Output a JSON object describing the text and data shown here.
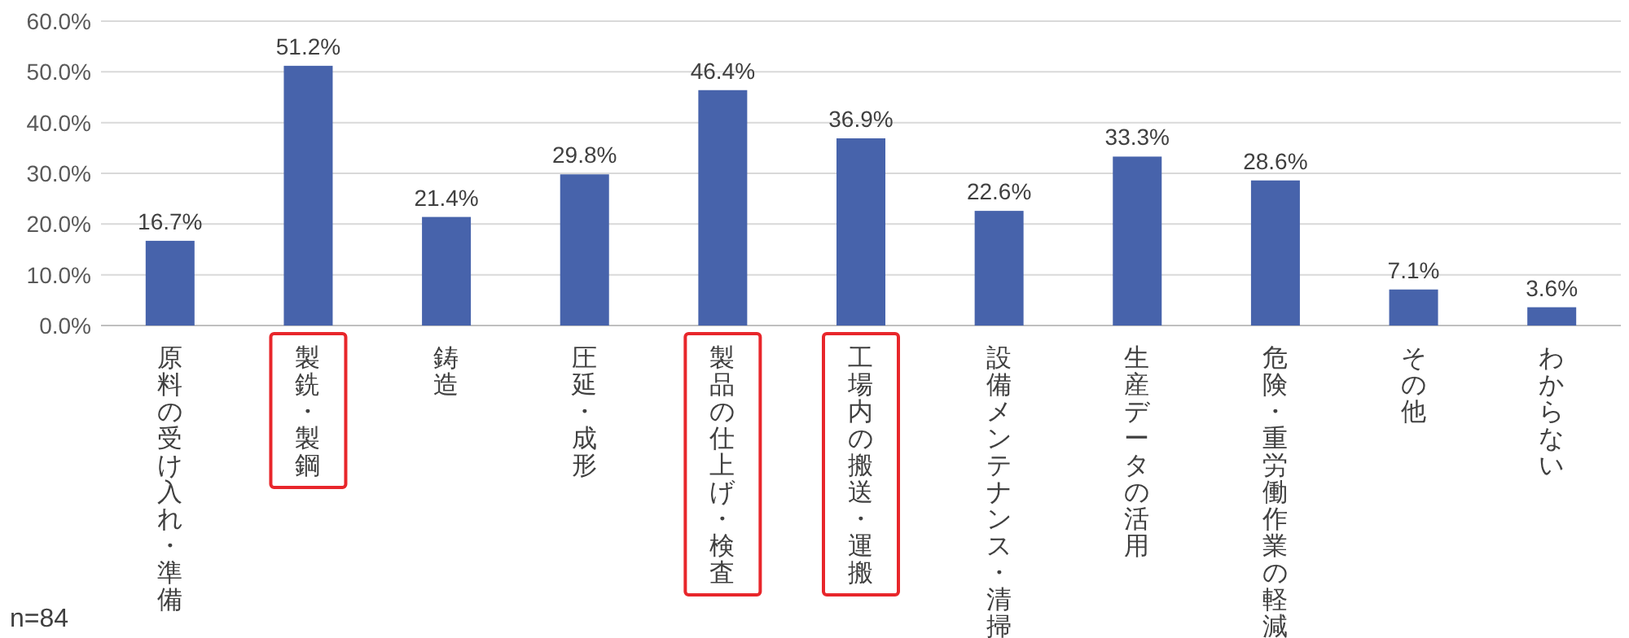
{
  "chart_data": {
    "type": "bar",
    "categories": [
      "原料の受け入れ・準備",
      "製銑・製鋼",
      "鋳造",
      "圧延・成形",
      "製品の仕上げ・検査",
      "工場内の搬送・運搬",
      "設備メンテナンス・清掃",
      "生産データの活用",
      "危険・重労働作業の軽減",
      "その他",
      "わからない"
    ],
    "values": [
      16.7,
      51.2,
      21.4,
      29.8,
      46.4,
      36.9,
      22.6,
      33.3,
      28.6,
      7.1,
      3.6
    ],
    "color": "#4763ab",
    "ylim": [
      0,
      60
    ],
    "yticks": [
      {
        "value": 0,
        "label": "0.0%"
      },
      {
        "value": 10,
        "label": "10.0%"
      },
      {
        "value": 20,
        "label": "20.0%"
      },
      {
        "value": 30,
        "label": "30.0%"
      },
      {
        "value": 40,
        "label": "40.0%"
      },
      {
        "value": 50,
        "label": "50.0%"
      },
      {
        "value": 60,
        "label": "60.0%"
      }
    ],
    "grid": "y",
    "value_labels": [
      "16.7%",
      "51.2%",
      "21.4%",
      "29.8%",
      "46.4%",
      "36.9%",
      "22.6%",
      "33.3%",
      "28.6%",
      "7.1%",
      "3.6%"
    ],
    "annotations": [
      "n=84"
    ]
  }
}
